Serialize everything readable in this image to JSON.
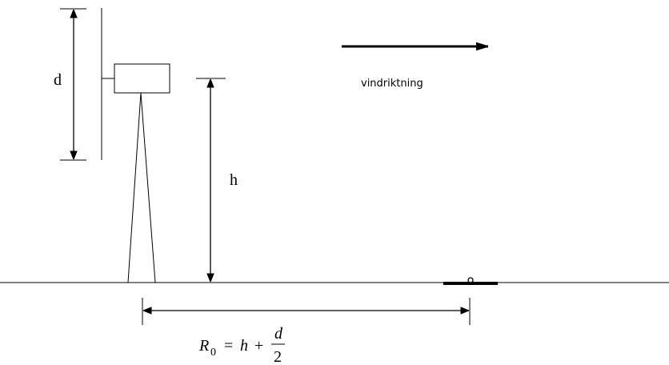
{
  "labels": {
    "d": "d",
    "h": "h",
    "wind": "vindriktning"
  },
  "formula": {
    "symbol": "R",
    "subscript": "0",
    "equals": "=",
    "term": "h",
    "plus": "+",
    "numerator": "d",
    "denominator": "2"
  }
}
